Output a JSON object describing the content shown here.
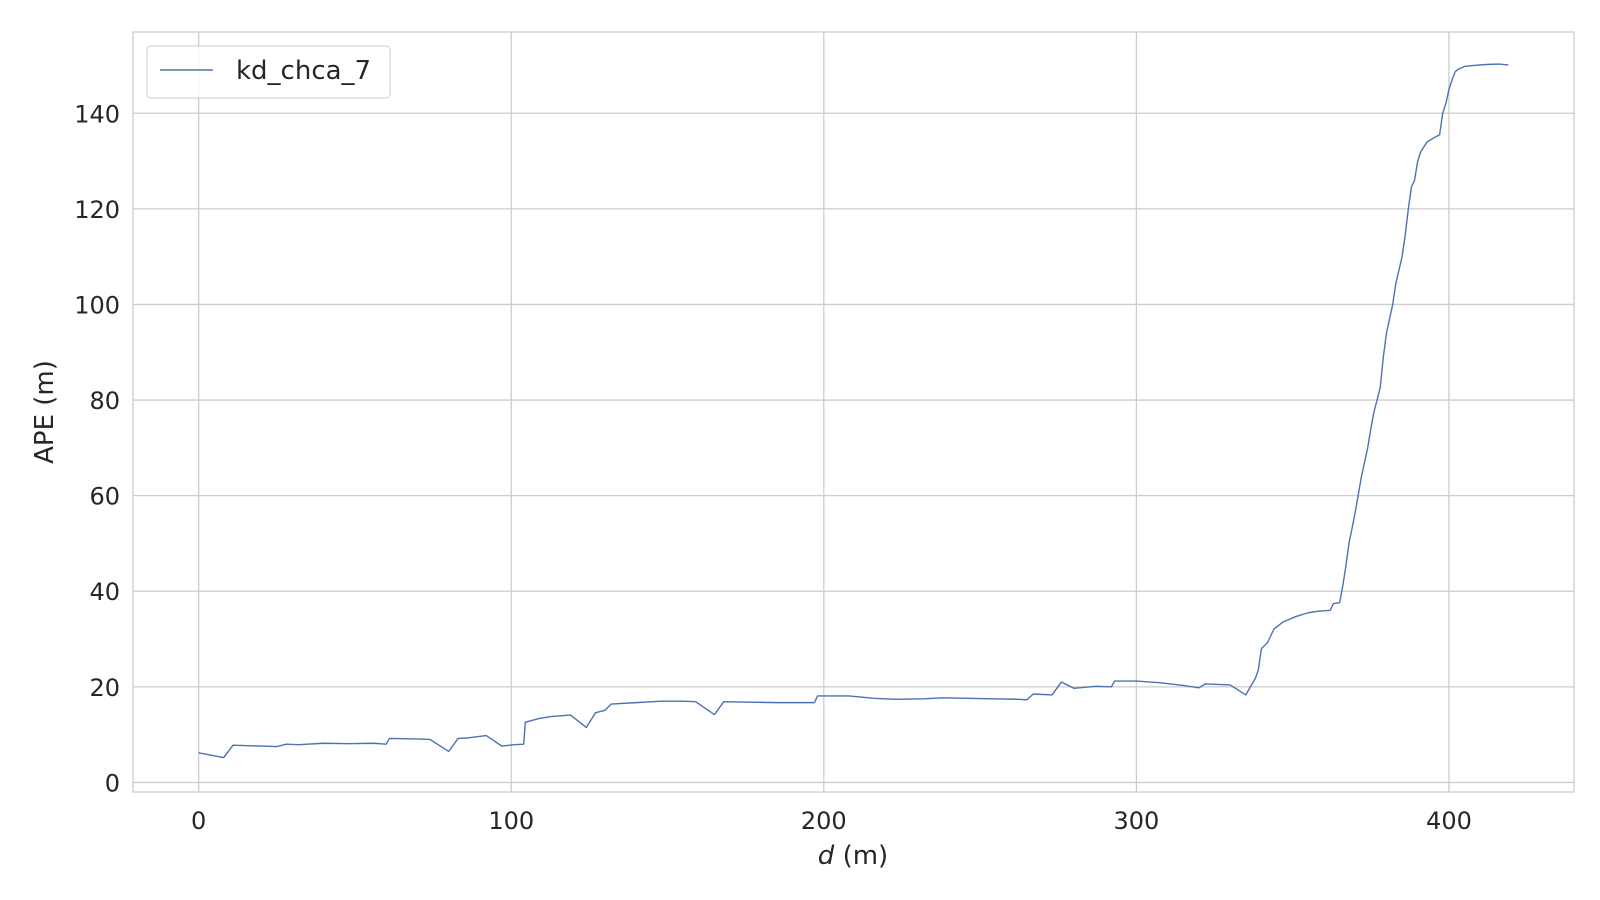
{
  "chart_data": {
    "type": "line",
    "title": "",
    "xlabel_var": "d",
    "xlabel_unit": " (m)",
    "ylabel": "APE (m)",
    "xlim": [
      -21,
      440
    ],
    "ylim": [
      -2,
      157
    ],
    "xticks": [
      0,
      100,
      200,
      300,
      400
    ],
    "yticks": [
      0,
      20,
      40,
      60,
      80,
      100,
      120,
      140
    ],
    "grid": true,
    "legend_position": "top-left",
    "series": [
      {
        "name": "kd_chca_7",
        "color": "#4c72b0",
        "x": [
          0,
          8,
          11,
          20,
          25,
          28,
          32,
          40,
          48,
          56,
          60,
          61,
          70,
          74,
          80,
          83,
          86,
          92,
          97,
          101,
          104,
          104.5,
          109,
          113,
          119,
          124,
          127,
          130,
          132,
          140,
          148,
          155,
          159,
          165,
          168,
          176,
          185,
          194,
          197,
          198,
          208,
          216,
          223,
          232,
          238,
          246,
          254,
          262,
          265,
          267,
          273,
          276,
          280,
          287,
          292,
          293,
          300,
          307,
          315,
          320,
          322,
          330,
          335,
          337,
          338,
          339,
          340,
          342,
          344,
          347,
          351,
          355,
          358,
          362,
          363,
          365,
          366,
          367,
          368,
          369,
          370,
          372,
          374,
          375,
          376,
          377,
          378,
          379,
          380,
          382,
          383,
          385,
          386,
          387,
          388,
          389,
          390,
          391,
          393,
          395,
          397,
          398,
          399,
          400,
          401,
          402,
          403,
          405,
          408,
          412,
          416,
          419
        ],
        "y": [
          6.2,
          5.2,
          7.8,
          7.6,
          7.5,
          8.0,
          7.9,
          8.2,
          8.1,
          8.2,
          8.0,
          9.2,
          9.1,
          9.0,
          6.5,
          9.2,
          9.3,
          9.8,
          7.6,
          7.9,
          8.0,
          12.6,
          13.4,
          13.8,
          14.1,
          11.5,
          14.6,
          15.1,
          16.4,
          16.7,
          17.0,
          17.0,
          16.9,
          14.2,
          16.9,
          16.8,
          16.7,
          16.7,
          16.7,
          18.1,
          18.1,
          17.6,
          17.4,
          17.5,
          17.7,
          17.6,
          17.5,
          17.4,
          17.3,
          18.5,
          18.3,
          21.0,
          19.7,
          20.1,
          20.0,
          21.2,
          21.2,
          20.9,
          20.3,
          19.8,
          20.6,
          20.4,
          18.3,
          20.6,
          21.7,
          23.5,
          28.0,
          29.3,
          32.1,
          33.6,
          34.7,
          35.5,
          35.8,
          36.0,
          37.4,
          37.6,
          41.0,
          45.2,
          50.0,
          53.2,
          56.5,
          64.0,
          70.0,
          74.0,
          77.5,
          80.0,
          82.6,
          89.0,
          94.0,
          100.0,
          104.4,
          110.0,
          114.5,
          120.0,
          124.6,
          126.0,
          130.0,
          132.0,
          134.0,
          134.8,
          135.5,
          140.0,
          142.0,
          145.0,
          147.0,
          148.7,
          149.2,
          149.8,
          150.0,
          150.2,
          150.3,
          150.1
        ]
      }
    ]
  }
}
